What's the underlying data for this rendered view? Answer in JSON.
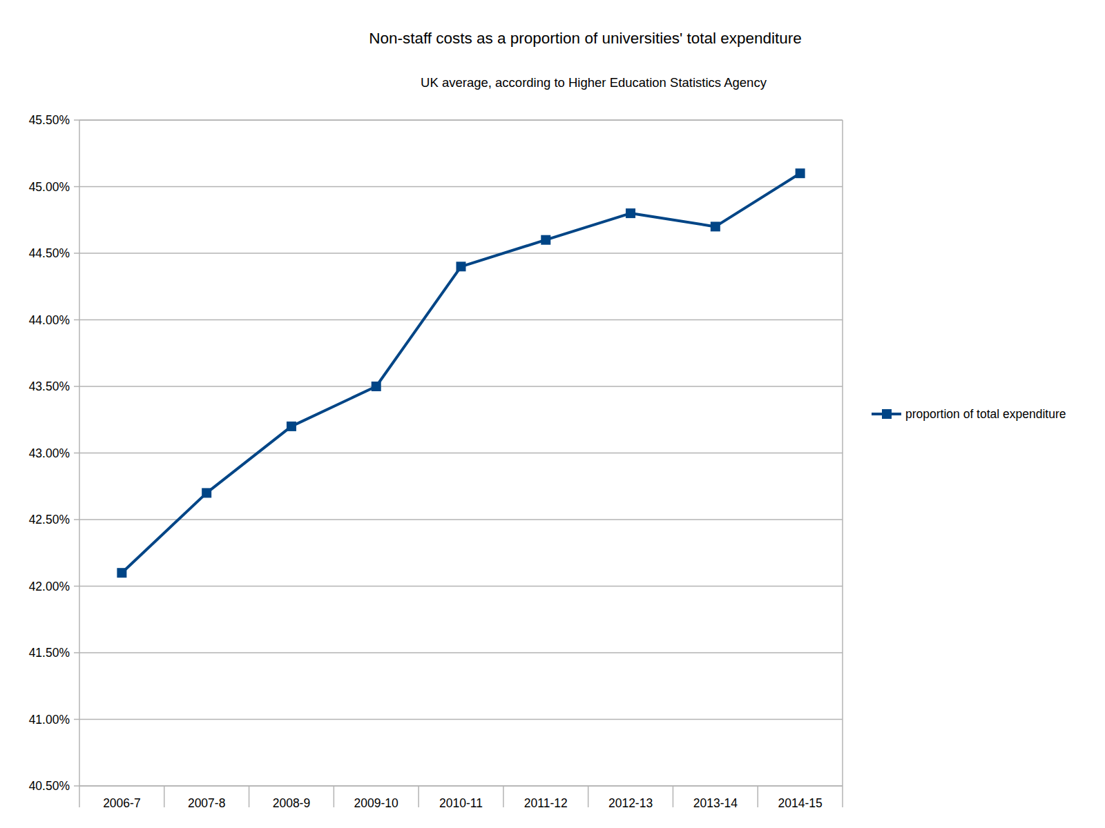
{
  "chart_data": {
    "type": "line",
    "title": "Non-staff costs as a proportion of universities' total expenditure",
    "subtitle": "UK average, according to Higher Education Statistics Agency",
    "categories": [
      "2006-7",
      "2007-8",
      "2008-9",
      "2009-10",
      "2010-11",
      "2011-12",
      "2012-13",
      "2013-14",
      "2014-15"
    ],
    "series": [
      {
        "name": "proportion of total expenditure",
        "color": "#004586",
        "marker": "square",
        "values": [
          42.1,
          42.7,
          43.2,
          43.5,
          44.4,
          44.6,
          44.8,
          44.7,
          45.1
        ]
      }
    ],
    "ylim": [
      40.5,
      45.5
    ],
    "yticks": [
      {
        "value": 40.5,
        "label": "40.50%"
      },
      {
        "value": 41,
        "label": "41.00%"
      },
      {
        "value": 41.5,
        "label": "41.50%"
      },
      {
        "value": 42,
        "label": "42.00%"
      },
      {
        "value": 42.5,
        "label": "42.50%"
      },
      {
        "value": 43,
        "label": "43.00%"
      },
      {
        "value": 43.5,
        "label": "43.50%"
      },
      {
        "value": 44,
        "label": "44.00%"
      },
      {
        "value": 44.5,
        "label": "44.50%"
      },
      {
        "value": 45,
        "label": "45.00%"
      },
      {
        "value": 45.5,
        "label": "45.50%"
      }
    ],
    "grid": true,
    "legend": "right"
  }
}
